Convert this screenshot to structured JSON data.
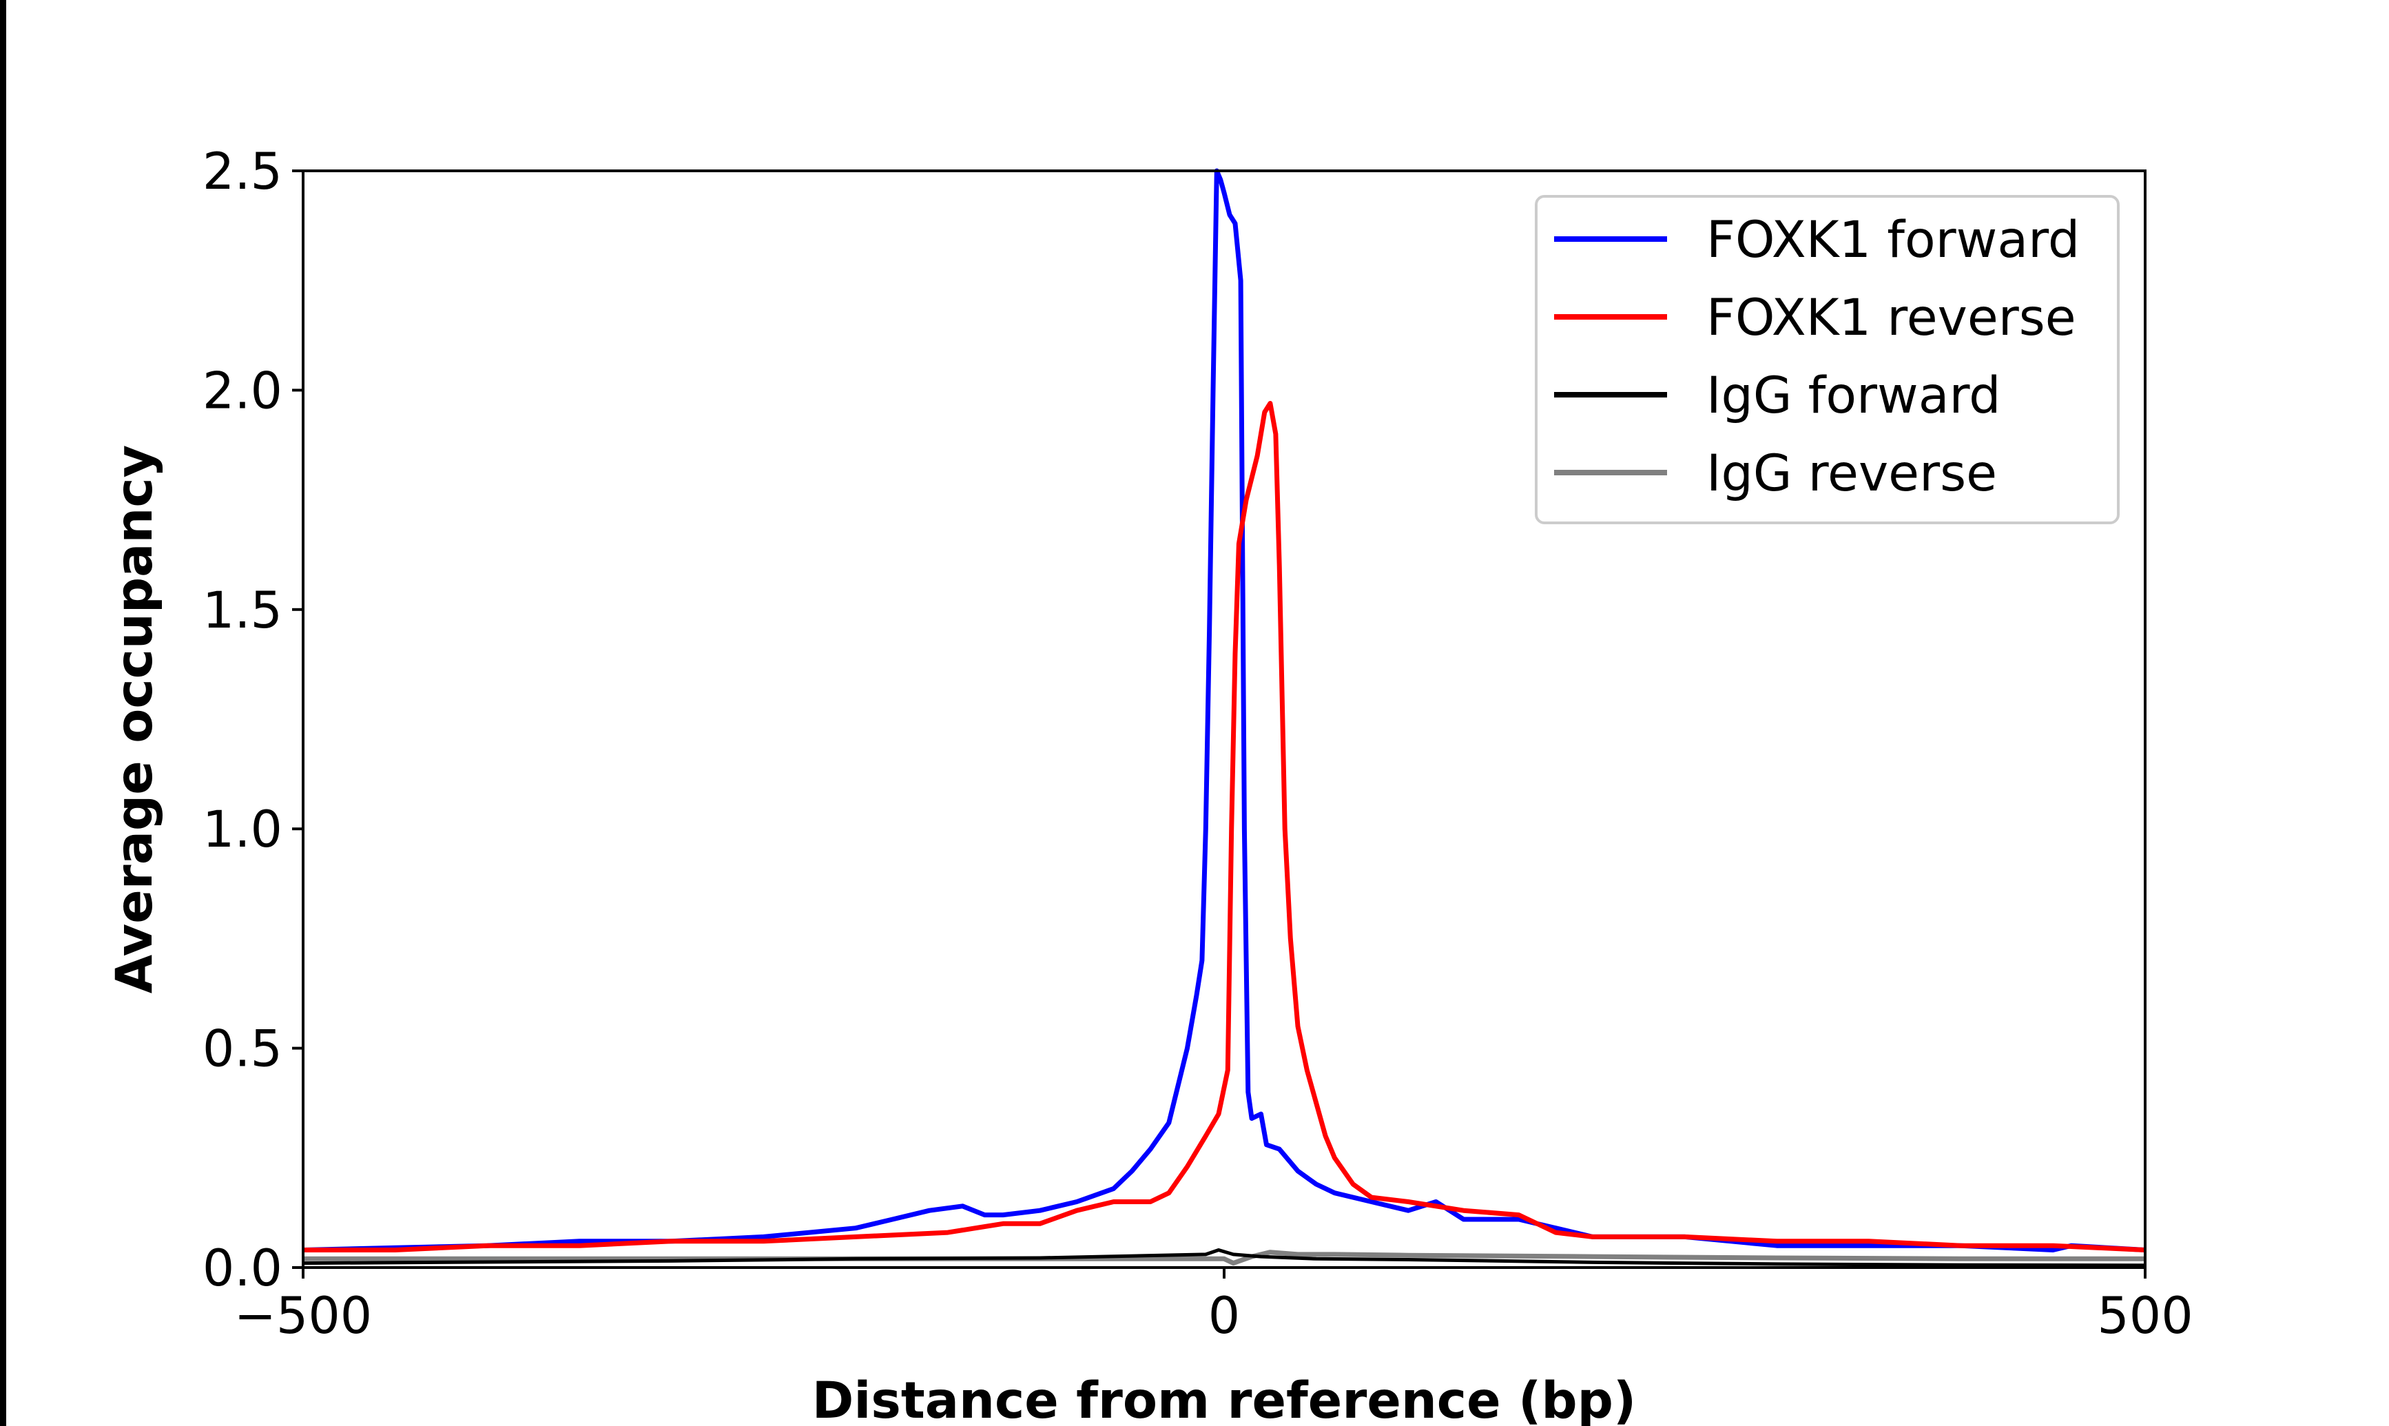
{
  "chart_data": {
    "type": "line",
    "title": "",
    "xlabel": "Distance from reference (bp)",
    "ylabel": "Average occupancy",
    "xlim": [
      -500,
      500
    ],
    "ylim": [
      0,
      2.5
    ],
    "xticks": [
      -500,
      0,
      500
    ],
    "xtick_labels": [
      "−500",
      "0",
      "500"
    ],
    "yticks": [
      0,
      0.5,
      1.0,
      1.5,
      2.0,
      2.5
    ],
    "ytick_labels": [
      "0.0",
      "0.5",
      "1.0",
      "1.5",
      "2.0",
      "2.5"
    ],
    "grid": false,
    "legend_position": "top-right",
    "series": [
      {
        "name": "FOXK1 forward",
        "color": "#0000ff",
        "x": [
          -500,
          -450,
          -400,
          -350,
          -300,
          -250,
          -200,
          -180,
          -160,
          -142,
          -130,
          -120,
          -100,
          -80,
          -60,
          -50,
          -40,
          -30,
          -20,
          -15,
          -12,
          -10,
          -8,
          -6,
          -4,
          -2,
          0,
          3,
          6,
          9,
          11,
          13,
          15,
          20,
          23,
          30,
          40,
          50,
          60,
          80,
          100,
          115,
          130,
          160,
          180,
          200,
          250,
          300,
          350,
          400,
          450,
          460,
          500
        ],
        "y": [
          0.04,
          0.045,
          0.05,
          0.06,
          0.06,
          0.07,
          0.09,
          0.11,
          0.13,
          0.14,
          0.12,
          0.12,
          0.13,
          0.15,
          0.18,
          0.22,
          0.27,
          0.33,
          0.5,
          0.62,
          0.7,
          1.0,
          1.45,
          2.0,
          2.5,
          2.48,
          2.45,
          2.4,
          2.38,
          2.25,
          1.0,
          0.4,
          0.34,
          0.35,
          0.28,
          0.27,
          0.22,
          0.19,
          0.17,
          0.15,
          0.13,
          0.15,
          0.11,
          0.11,
          0.09,
          0.07,
          0.07,
          0.05,
          0.05,
          0.05,
          0.04,
          0.05,
          0.04
        ]
      },
      {
        "name": "FOXK1 reverse",
        "color": "#ff0000",
        "x": [
          -500,
          -450,
          -400,
          -350,
          -300,
          -250,
          -200,
          -150,
          -120,
          -100,
          -80,
          -60,
          -40,
          -30,
          -20,
          -10,
          -3,
          2,
          4,
          6,
          8,
          12,
          18,
          22,
          25,
          28,
          30,
          33,
          36,
          40,
          45,
          55,
          60,
          70,
          80,
          100,
          130,
          160,
          180,
          200,
          250,
          300,
          350,
          400,
          450,
          500
        ],
        "y": [
          0.04,
          0.04,
          0.05,
          0.05,
          0.06,
          0.06,
          0.07,
          0.08,
          0.1,
          0.1,
          0.13,
          0.15,
          0.15,
          0.17,
          0.23,
          0.3,
          0.35,
          0.45,
          1.0,
          1.4,
          1.65,
          1.75,
          1.85,
          1.95,
          1.97,
          1.9,
          1.6,
          1.0,
          0.75,
          0.55,
          0.45,
          0.3,
          0.25,
          0.19,
          0.16,
          0.15,
          0.13,
          0.12,
          0.08,
          0.07,
          0.07,
          0.06,
          0.06,
          0.05,
          0.05,
          0.04
        ]
      },
      {
        "name": "IgG forward",
        "color": "#000000",
        "x": [
          -500,
          -300,
          -200,
          -100,
          -10,
          -3,
          5,
          20,
          50,
          100,
          200,
          300,
          400,
          500
        ],
        "y": [
          0.01,
          0.015,
          0.02,
          0.022,
          0.03,
          0.04,
          0.03,
          0.025,
          0.02,
          0.018,
          0.012,
          0.008,
          0.006,
          0.005
        ]
      },
      {
        "name": "IgG reverse",
        "color": "#808080",
        "x": [
          -500,
          -300,
          -200,
          -100,
          0,
          5,
          15,
          25,
          40,
          60,
          100,
          200,
          300,
          400,
          500
        ],
        "y": [
          0.02,
          0.02,
          0.02,
          0.02,
          0.02,
          0.01,
          0.025,
          0.035,
          0.03,
          0.03,
          0.028,
          0.025,
          0.022,
          0.02,
          0.02
        ]
      }
    ]
  }
}
